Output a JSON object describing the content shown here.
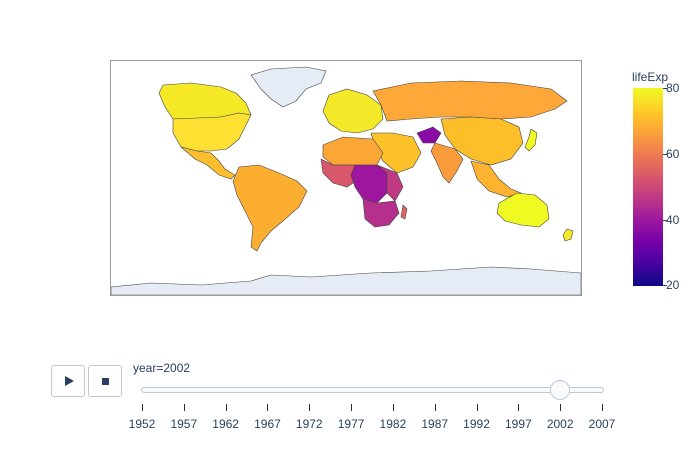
{
  "map": {
    "land_other": "#e5ecf6",
    "border_color": "#444444",
    "regions": [
      {
        "id": "north-america-north",
        "lifeExp": 79
      },
      {
        "id": "usa",
        "lifeExp": 77
      },
      {
        "id": "mexico-central-america",
        "lifeExp": 74
      },
      {
        "id": "south-america",
        "lifeExp": 72
      },
      {
        "id": "europe",
        "lifeExp": 78
      },
      {
        "id": "russia",
        "lifeExp": 65
      },
      {
        "id": "middle-east",
        "lifeExp": 70
      },
      {
        "id": "afghanistan",
        "lifeExp": 42
      },
      {
        "id": "north-africa",
        "lifeExp": 70
      },
      {
        "id": "west-africa",
        "lifeExp": 52
      },
      {
        "id": "central-africa",
        "lifeExp": 43
      },
      {
        "id": "east-africa",
        "lifeExp": 46
      },
      {
        "id": "southern-africa",
        "lifeExp": 48
      },
      {
        "id": "china-mongolia",
        "lifeExp": 71
      },
      {
        "id": "india",
        "lifeExp": 63
      },
      {
        "id": "southeast-asia",
        "lifeExp": 68
      },
      {
        "id": "japan",
        "lifeExp": 82
      },
      {
        "id": "australia",
        "lifeExp": 80
      },
      {
        "id": "new-zealand",
        "lifeExp": 79
      }
    ]
  },
  "colorbar": {
    "title": "lifeExp",
    "min": 20,
    "max": 80,
    "ticks": [
      "80",
      "60",
      "40",
      "20"
    ],
    "colors": [
      "#0d0887",
      "#46039f",
      "#7201a8",
      "#9c179e",
      "#bd3786",
      "#d8576b",
      "#ed7953",
      "#fb9f3a",
      "#fdca26",
      "#f0f921"
    ]
  },
  "animation": {
    "play_icon": "play-icon",
    "stop_icon": "stop-icon",
    "current_label": "year=2002",
    "current_value": 2002,
    "steps": [
      "1952",
      "1957",
      "1962",
      "1967",
      "1972",
      "1977",
      "1982",
      "1987",
      "1992",
      "1997",
      "2002",
      "2007"
    ]
  }
}
